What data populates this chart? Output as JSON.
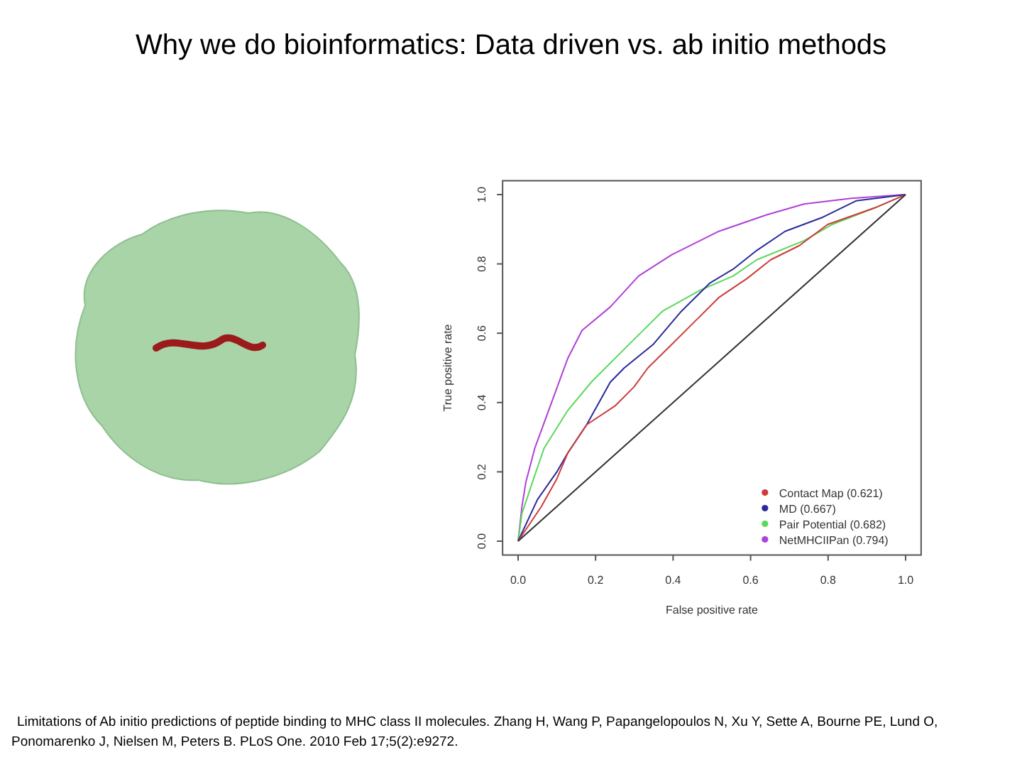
{
  "chart_data": {
    "type": "line",
    "title": "Why we do bioinformatics: Data driven vs. ab initio methods",
    "xlabel": "False positive rate",
    "ylabel": "True positive rate",
    "xlim": [
      -0.04,
      1.04
    ],
    "ylim": [
      -0.04,
      1.04
    ],
    "xticks": [
      {
        "value": 0,
        "label": "0.0"
      },
      0.2,
      0.4,
      0.6,
      0.8,
      {
        "value": 1,
        "label": "1.0"
      }
    ],
    "yticks": [
      {
        "value": 0,
        "label": "0.0"
      },
      0.2,
      0.4,
      0.6,
      0.8,
      {
        "value": 1,
        "label": "1.0"
      }
    ],
    "grid": false,
    "legend": "bottom right",
    "marker": "none",
    "line_style": "solid",
    "series": [
      {
        "name": "Contact Map (0.621)",
        "color": "#d03a3a",
        "x": [
          0,
          0.06,
          0.1,
          0.128,
          0.177,
          0.25,
          0.299,
          0.335,
          0.396,
          0.457,
          0.518,
          0.591,
          0.652,
          0.726,
          0.799,
          0.921,
          1
        ],
        "values": [
          0,
          0.1,
          0.18,
          0.254,
          0.336,
          0.39,
          0.445,
          0.5,
          0.567,
          0.635,
          0.703,
          0.758,
          0.812,
          0.853,
          0.914,
          0.962,
          1
        ]
      },
      {
        "name": "MD (0.667)",
        "color": "#2a2a9a",
        "x": [
          0,
          0.05,
          0.1,
          0.128,
          0.177,
          0.238,
          0.274,
          0.348,
          0.421,
          0.494,
          0.555,
          0.616,
          0.689,
          0.787,
          0.872,
          1
        ],
        "values": [
          0,
          0.12,
          0.2,
          0.254,
          0.336,
          0.459,
          0.5,
          0.567,
          0.663,
          0.744,
          0.785,
          0.839,
          0.894,
          0.935,
          0.982,
          1
        ]
      },
      {
        "name": "Pair Potential (0.682)",
        "color": "#5ad85a",
        "x": [
          0,
          0.01,
          0.04,
          0.067,
          0.128,
          0.189,
          0.274,
          0.372,
          0.47,
          0.555,
          0.616,
          0.738,
          0.811,
          0.921,
          1
        ],
        "values": [
          0,
          0.08,
          0.18,
          0.268,
          0.377,
          0.459,
          0.554,
          0.663,
          0.724,
          0.765,
          0.812,
          0.867,
          0.914,
          0.962,
          1
        ]
      },
      {
        "name": "NetMHCIIPan (0.794)",
        "color": "#b040d8",
        "x": [
          0,
          0.01,
          0.02,
          0.043,
          0.128,
          0.165,
          0.238,
          0.311,
          0.396,
          0.518,
          0.64,
          0.738,
          0.86,
          1
        ],
        "values": [
          0,
          0.1,
          0.17,
          0.268,
          0.527,
          0.608,
          0.676,
          0.765,
          0.826,
          0.894,
          0.941,
          0.973,
          0.989,
          1
        ]
      },
      {
        "color": "#333333",
        "x": [
          0,
          1
        ],
        "values": [
          0,
          1
        ]
      }
    ],
    "annotations": [
      "Limitations of Ab initio predictions of peptide binding to MHC class II molecules. Zhang H, Wang P, Papangelopoulos N, Xu Y, Sette A, Bourne PE, Lund O, Ponomarenko J, Nielsen M, Peters B. PLoS One. 2010 Feb 17;5(2):e9272."
    ]
  }
}
